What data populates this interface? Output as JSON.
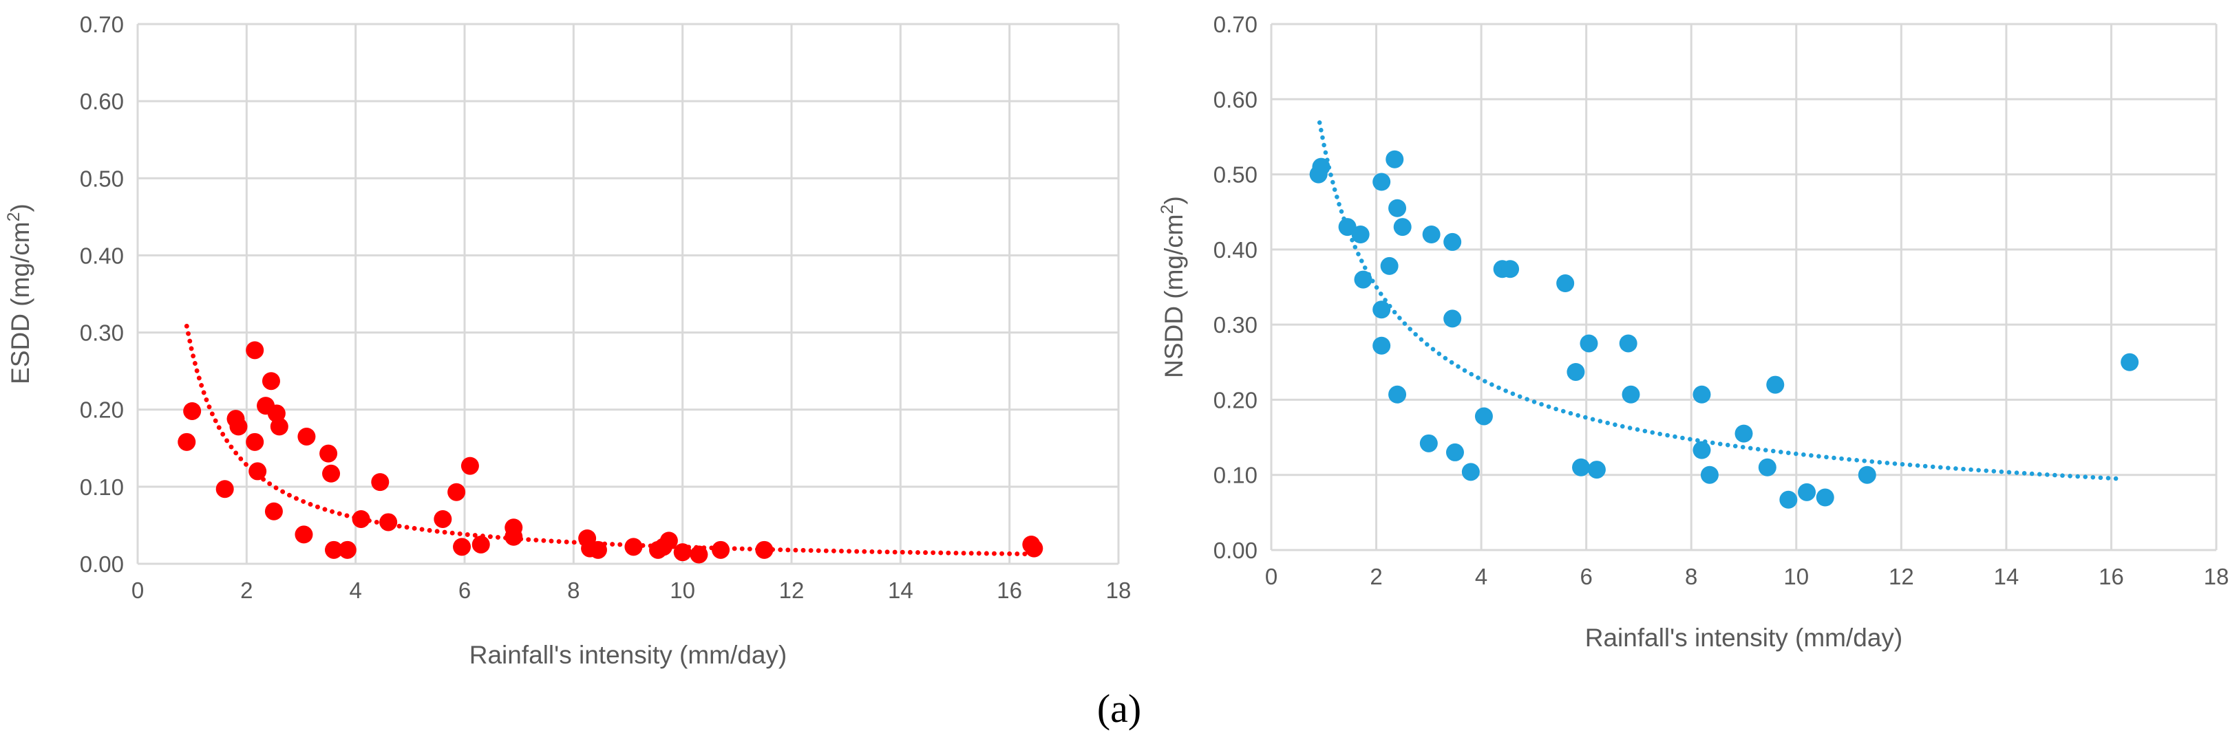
{
  "figure_label": "(a)",
  "chart_data": [
    {
      "type": "scatter",
      "name": "esdd",
      "title": "",
      "xlabel": "Rainfall's intensity (mm/day)",
      "ylabel_main": "ESDD (mg/cm",
      "ylabel_sup": "2",
      "ylabel_close": ")",
      "xlim": [
        0,
        18
      ],
      "ylim": [
        0,
        0.7
      ],
      "xticks": [
        0,
        2,
        4,
        6,
        8,
        10,
        12,
        14,
        16,
        18
      ],
      "yticks": [
        0,
        0.1,
        0.2,
        0.3,
        0.4,
        0.5,
        0.6,
        0.7
      ],
      "xtick_labels": [
        "0",
        "2",
        "4",
        "6",
        "8",
        "10",
        "12",
        "14",
        "16",
        "18"
      ],
      "ytick_labels": [
        "0.00",
        "0.10",
        "0.20",
        "0.30",
        "0.40",
        "0.50",
        "0.60",
        "0.70"
      ],
      "grid": true,
      "color": "#ff0000",
      "trendline": {
        "type": "power",
        "a": 0.2745,
        "b": -1.1,
        "x_start": 0.9,
        "x_end": 16.4
      },
      "points": [
        {
          "x": 0.9,
          "y": 0.158
        },
        {
          "x": 1.0,
          "y": 0.198
        },
        {
          "x": 1.6,
          "y": 0.097
        },
        {
          "x": 1.8,
          "y": 0.188
        },
        {
          "x": 1.85,
          "y": 0.178
        },
        {
          "x": 2.15,
          "y": 0.277
        },
        {
          "x": 2.15,
          "y": 0.158
        },
        {
          "x": 2.2,
          "y": 0.12
        },
        {
          "x": 2.35,
          "y": 0.205
        },
        {
          "x": 2.45,
          "y": 0.237
        },
        {
          "x": 2.5,
          "y": 0.068
        },
        {
          "x": 2.55,
          "y": 0.195
        },
        {
          "x": 2.6,
          "y": 0.178
        },
        {
          "x": 3.05,
          "y": 0.038
        },
        {
          "x": 3.1,
          "y": 0.165
        },
        {
          "x": 3.5,
          "y": 0.143
        },
        {
          "x": 3.55,
          "y": 0.117
        },
        {
          "x": 3.6,
          "y": 0.018
        },
        {
          "x": 3.85,
          "y": 0.018
        },
        {
          "x": 4.1,
          "y": 0.058
        },
        {
          "x": 4.45,
          "y": 0.106
        },
        {
          "x": 4.6,
          "y": 0.054
        },
        {
          "x": 5.6,
          "y": 0.058
        },
        {
          "x": 5.85,
          "y": 0.093
        },
        {
          "x": 5.95,
          "y": 0.022
        },
        {
          "x": 6.1,
          "y": 0.127
        },
        {
          "x": 6.3,
          "y": 0.025
        },
        {
          "x": 6.9,
          "y": 0.047
        },
        {
          "x": 6.9,
          "y": 0.035
        },
        {
          "x": 8.25,
          "y": 0.033
        },
        {
          "x": 8.3,
          "y": 0.02
        },
        {
          "x": 8.45,
          "y": 0.018
        },
        {
          "x": 9.1,
          "y": 0.022
        },
        {
          "x": 9.55,
          "y": 0.018
        },
        {
          "x": 9.65,
          "y": 0.022
        },
        {
          "x": 9.75,
          "y": 0.03
        },
        {
          "x": 10.0,
          "y": 0.015
        },
        {
          "x": 10.3,
          "y": 0.012
        },
        {
          "x": 10.7,
          "y": 0.018
        },
        {
          "x": 11.5,
          "y": 0.018
        },
        {
          "x": 16.4,
          "y": 0.025
        },
        {
          "x": 16.45,
          "y": 0.02
        }
      ]
    },
    {
      "type": "scatter",
      "name": "nsdd",
      "title": "",
      "xlabel": "Rainfall's intensity (mm/day)",
      "ylabel_main": "NSDD (mg/cm",
      "ylabel_sup": "2",
      "ylabel_close": ")",
      "xlim": [
        0,
        18
      ],
      "ylim": [
        0,
        0.7
      ],
      "xticks": [
        0,
        2,
        4,
        6,
        8,
        10,
        12,
        14,
        16,
        18
      ],
      "yticks": [
        0,
        0.1,
        0.2,
        0.3,
        0.4,
        0.5,
        0.6,
        0.7
      ],
      "xtick_labels": [
        "0",
        "2",
        "4",
        "6",
        "8",
        "10",
        "12",
        "14",
        "16",
        "18"
      ],
      "ytick_labels": [
        "0.00",
        "0.10",
        "0.20",
        "0.30",
        "0.40",
        "0.50",
        "0.60",
        "0.70"
      ],
      "grid": true,
      "color": "#1f9fdb",
      "trendline": {
        "type": "power",
        "a": 0.54,
        "b": -0.625,
        "x_start": 0.92,
        "x_end": 16.2
      },
      "points": [
        {
          "x": 0.9,
          "y": 0.5
        },
        {
          "x": 0.95,
          "y": 0.51
        },
        {
          "x": 1.45,
          "y": 0.43
        },
        {
          "x": 1.7,
          "y": 0.42
        },
        {
          "x": 1.75,
          "y": 0.36
        },
        {
          "x": 2.1,
          "y": 0.49
        },
        {
          "x": 2.1,
          "y": 0.32
        },
        {
          "x": 2.1,
          "y": 0.272
        },
        {
          "x": 2.25,
          "y": 0.378
        },
        {
          "x": 2.35,
          "y": 0.52
        },
        {
          "x": 2.4,
          "y": 0.207
        },
        {
          "x": 2.4,
          "y": 0.455
        },
        {
          "x": 2.5,
          "y": 0.43
        },
        {
          "x": 3.0,
          "y": 0.142
        },
        {
          "x": 3.05,
          "y": 0.42
        },
        {
          "x": 3.45,
          "y": 0.41
        },
        {
          "x": 3.45,
          "y": 0.308
        },
        {
          "x": 3.5,
          "y": 0.13
        },
        {
          "x": 3.8,
          "y": 0.104
        },
        {
          "x": 4.05,
          "y": 0.178
        },
        {
          "x": 4.4,
          "y": 0.374
        },
        {
          "x": 4.55,
          "y": 0.374
        },
        {
          "x": 5.6,
          "y": 0.355
        },
        {
          "x": 5.8,
          "y": 0.237
        },
        {
          "x": 5.9,
          "y": 0.11
        },
        {
          "x": 6.05,
          "y": 0.275
        },
        {
          "x": 6.2,
          "y": 0.107
        },
        {
          "x": 6.8,
          "y": 0.275
        },
        {
          "x": 6.85,
          "y": 0.207
        },
        {
          "x": 8.2,
          "y": 0.207
        },
        {
          "x": 8.2,
          "y": 0.133
        },
        {
          "x": 8.35,
          "y": 0.1
        },
        {
          "x": 9.0,
          "y": 0.155
        },
        {
          "x": 9.45,
          "y": 0.11
        },
        {
          "x": 9.6,
          "y": 0.22
        },
        {
          "x": 9.85,
          "y": 0.067
        },
        {
          "x": 10.2,
          "y": 0.077
        },
        {
          "x": 10.55,
          "y": 0.07
        },
        {
          "x": 11.35,
          "y": 0.1
        },
        {
          "x": 16.35,
          "y": 0.25
        }
      ]
    }
  ]
}
